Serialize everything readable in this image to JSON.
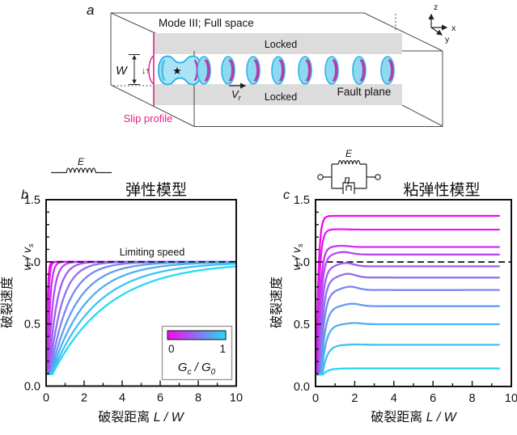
{
  "panel_a": {
    "label": "a",
    "mode_label": "Mode III; Full space",
    "locked_top": "Locked",
    "locked_bottom": "Locked",
    "fault_plane": "Fault plane",
    "slip_profile": "Slip profile",
    "width_label": "W",
    "rupture_speed_symbol": {
      "base": "V",
      "sub": "r"
    },
    "axes_triad": {
      "x": "x",
      "y": "y",
      "z": "z"
    },
    "icons": {
      "hypocenter_star": "★",
      "slip_direction_arrows": "↓↑"
    },
    "colors": {
      "locked_gray": "#dcdcdc",
      "magenta_accent": "#e0218a",
      "contour_cyan_fill": "#8ed9f2",
      "contour_cyan_edge": "#2fb3e6",
      "contour_magenta": "#b93aa6",
      "nucleation_fill": "#abe3f6",
      "star_red": "#e5231e",
      "box_line": "#4d4d4d"
    }
  },
  "panel_b": {
    "label": "b",
    "title": "弹性模型",
    "icon_label": "E",
    "limiting_speed": "Limiting speed",
    "legend": {
      "min": "0",
      "max": "1"
    }
  },
  "panel_c": {
    "label": "c",
    "title": "粘弹性模型",
    "icon_labels": {
      "spring": "E",
      "dashpot": "η"
    }
  },
  "axis_labels": {
    "x_title_cn": "破裂距离",
    "y_title_cn": "破裂速度"
  },
  "math": {
    "v": "v",
    "r": "r",
    "s": "s",
    "V": "V",
    "G": "G",
    "c": "c",
    "zero": "0",
    "L": "L",
    "W": "W",
    "E": "E",
    "eta": "η",
    "slash_sp": " / "
  },
  "chart_data": [
    {
      "type": "line",
      "panel": "b",
      "title": "弹性模型",
      "xlabel": "破裂距离 L / W",
      "ylabel": "破裂速度 v_r / v_s",
      "xlim": [
        0,
        10
      ],
      "ylim": [
        0,
        1.5
      ],
      "x_ticks": [
        0,
        2,
        4,
        6,
        8,
        10
      ],
      "x_tick_labels": [
        "0",
        "2",
        "4",
        "6",
        "8",
        "10"
      ],
      "x_minor_ticks": [
        1,
        3,
        5,
        7,
        9
      ],
      "y_ticks": [
        0,
        0.5,
        1.0,
        1.5
      ],
      "y_tick_labels": [
        "0.0",
        "0.5",
        "1.0",
        "1.5"
      ],
      "y_minor_ticks": [
        0.1,
        0.2,
        0.3,
        0.4,
        0.6,
        0.7,
        0.8,
        0.9,
        1.1,
        1.2,
        1.3,
        1.4
      ],
      "annotation": {
        "text": "Limiting speed",
        "y": 1.0,
        "line_style": "dashed"
      },
      "colorbar": {
        "label": "Gc / G0",
        "min": "0",
        "max": "1",
        "color_start": "#F408F0",
        "color_end": "#28D8F4"
      },
      "v_start": 0.095,
      "x_start": 0.05,
      "x_end": 9.95,
      "model": "v(L) = v_lim - (v_lim - v_start)*exp(-(L-L0)/tau), clamped below at v_start",
      "series": [
        {
          "gc_g0": 0.0,
          "v_lim": 1.0,
          "tau": 0.05,
          "L0": 0.03
        },
        {
          "gc_g0": 0.1,
          "v_lim": 1.0,
          "tau": 0.065,
          "L0": 0.06
        },
        {
          "gc_g0": 0.2,
          "v_lim": 1.0,
          "tau": 0.123,
          "L0": 0.09
        },
        {
          "gc_g0": 0.3,
          "v_lim": 1.0,
          "tau": 0.235,
          "L0": 0.12
        },
        {
          "gc_g0": 0.4,
          "v_lim": 1.0,
          "tau": 0.41,
          "L0": 0.15
        },
        {
          "gc_g0": 0.5,
          "v_lim": 1.0,
          "tau": 0.65,
          "L0": 0.18
        },
        {
          "gc_g0": 0.6,
          "v_lim": 1.0,
          "tau": 0.96,
          "L0": 0.21
        },
        {
          "gc_g0": 0.7,
          "v_lim": 1.0,
          "tau": 1.35,
          "L0": 0.24
        },
        {
          "gc_g0": 0.8,
          "v_lim": 1.0,
          "tau": 1.81,
          "L0": 0.27
        },
        {
          "gc_g0": 0.9,
          "v_lim": 1.0,
          "tau": 2.37,
          "L0": 0.3
        },
        {
          "gc_g0": 1.0,
          "v_lim": 1.0,
          "tau": 3.0,
          "L0": 0.33
        }
      ]
    },
    {
      "type": "line",
      "panel": "c",
      "title": "粘弹性模型",
      "xlabel": "破裂距离 L / W",
      "ylabel": "破裂速度 v_r / v_s",
      "xlim": [
        0,
        10
      ],
      "ylim": [
        0,
        1.5
      ],
      "x_ticks": [
        0,
        2,
        4,
        6,
        8,
        10
      ],
      "x_tick_labels": [
        "0",
        "2",
        "4",
        "6",
        "8",
        "10"
      ],
      "x_minor_ticks": [
        1,
        3,
        5,
        7,
        9
      ],
      "y_ticks": [
        0,
        0.5,
        1.0,
        1.5
      ],
      "y_tick_labels": [
        "0.0",
        "0.5",
        "1.0",
        "1.5"
      ],
      "y_minor_ticks": [
        0.1,
        0.2,
        0.3,
        0.4,
        0.6,
        0.7,
        0.8,
        0.9,
        1.1,
        1.2,
        1.3,
        1.4
      ],
      "annotation": {
        "text": "",
        "y": 1.0,
        "line_style": "dashed"
      },
      "colorbar": {
        "label": "Gc / G0",
        "min": "0",
        "max": "1",
        "color_start": "#F408F0",
        "color_end": "#28D8F4"
      },
      "v_start": 0.095,
      "x_start": 0.05,
      "x_end": 9.4,
      "model": "v(L) = plateau - (plateau - v_start)*exp(-(L-L0)/tau) + bump*exp(-((L-bump_x)/0.55)^2)",
      "series": [
        {
          "gc_g0": 0.0,
          "plateau": 1.37,
          "tau": 0.1,
          "L0": 0.05,
          "bump": 0,
          "bump_x": 1.1
        },
        {
          "gc_g0": 0.1,
          "plateau": 1.26,
          "tau": 0.116,
          "L0": 0.08,
          "bump": 0.003,
          "bump_x": 1.21
        },
        {
          "gc_g0": 0.2,
          "plateau": 1.12,
          "tau": 0.132,
          "L0": 0.12,
          "bump": 0.01,
          "bump_x": 1.32
        },
        {
          "gc_g0": 0.3,
          "plateau": 1.06,
          "tau": 0.148,
          "L0": 0.15,
          "bump": 0.02,
          "bump_x": 1.43
        },
        {
          "gc_g0": 0.4,
          "plateau": 0.965,
          "tau": 0.164,
          "L0": 0.18,
          "bump": 0.027,
          "bump_x": 1.54
        },
        {
          "gc_g0": 0.5,
          "plateau": 0.875,
          "tau": 0.18,
          "L0": 0.22,
          "bump": 0.03,
          "bump_x": 1.65
        },
        {
          "gc_g0": 0.6,
          "plateau": 0.775,
          "tau": 0.196,
          "L0": 0.25,
          "bump": 0.027,
          "bump_x": 1.76
        },
        {
          "gc_g0": 0.7,
          "plateau": 0.645,
          "tau": 0.212,
          "L0": 0.28,
          "bump": 0.02,
          "bump_x": 1.87
        },
        {
          "gc_g0": 0.8,
          "plateau": 0.5,
          "tau": 0.228,
          "L0": 0.31,
          "bump": 0.01,
          "bump_x": 1.98
        },
        {
          "gc_g0": 0.9,
          "plateau": 0.335,
          "tau": 0.244,
          "L0": 0.35,
          "bump": 0.003,
          "bump_x": 2.09
        },
        {
          "gc_g0": 1.0,
          "plateau": 0.145,
          "tau": 0.26,
          "L0": 0.38,
          "bump": 0,
          "bump_x": 2.2
        }
      ]
    }
  ]
}
